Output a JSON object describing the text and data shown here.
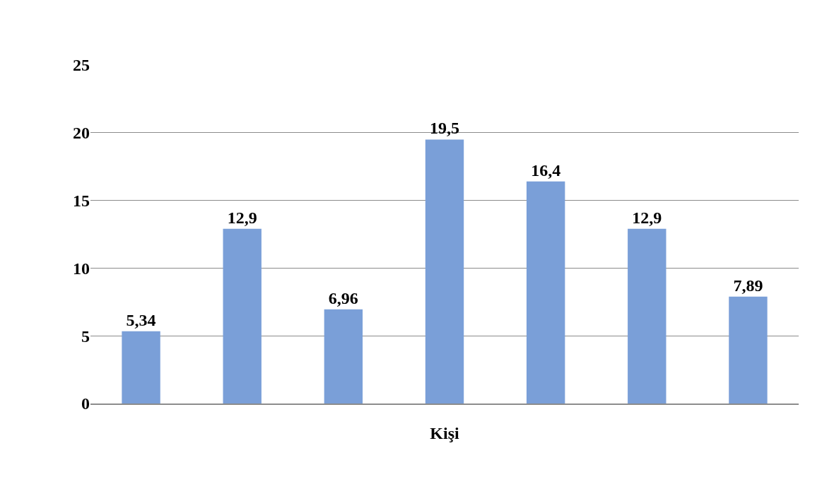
{
  "chart_data": {
    "type": "bar",
    "xlabel": "Kişi",
    "categories": [
      null,
      null,
      null,
      null,
      null,
      null,
      null
    ],
    "values": [
      5.34,
      12.9,
      6.96,
      19.5,
      16.4,
      12.9,
      7.89
    ],
    "value_labels": [
      "5,34",
      "12,9",
      "6,96",
      "19,5",
      "16,4",
      "12,9",
      "7,89"
    ],
    "color": "#7a9fd8",
    "ylim": [
      0,
      25
    ],
    "yticks": [
      0,
      5,
      10,
      15,
      20,
      25
    ],
    "grid": "y",
    "legend": false
  }
}
